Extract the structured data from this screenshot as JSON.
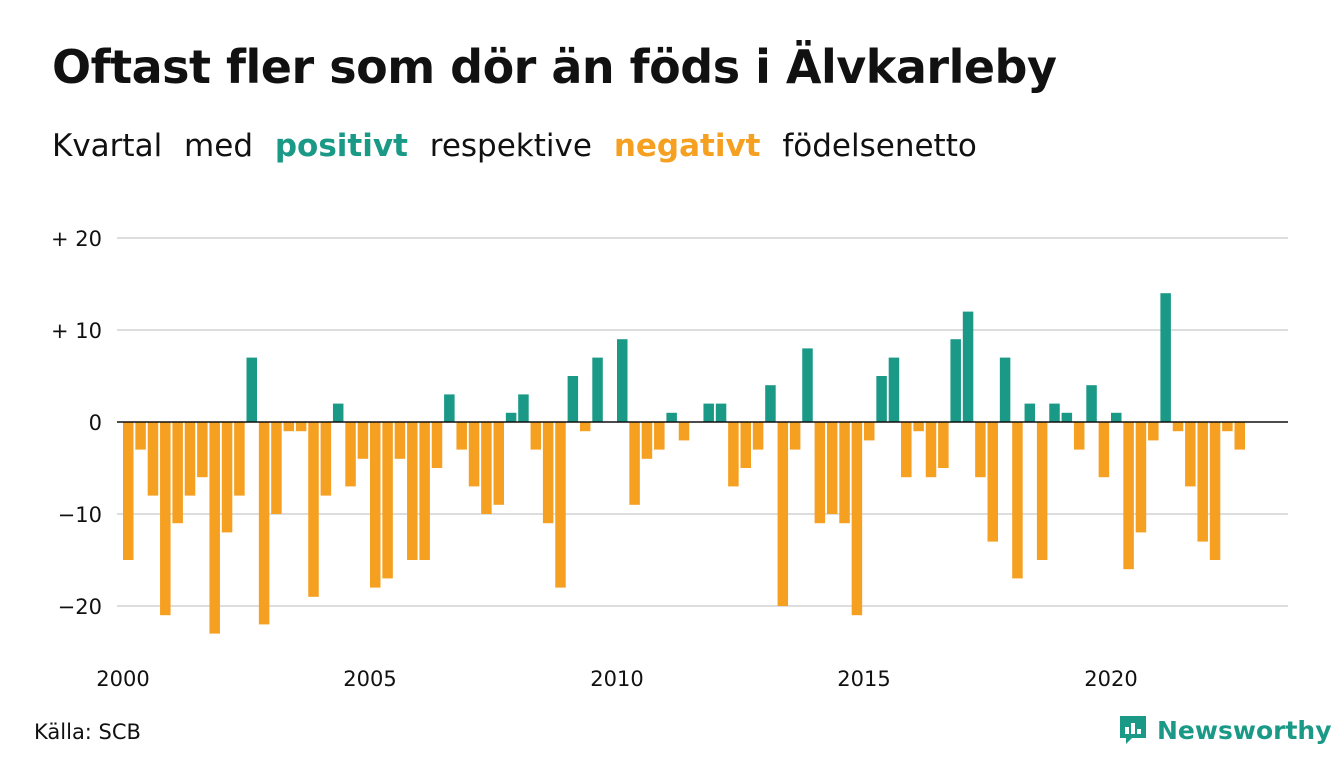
{
  "header": {
    "title": "Oftast fler som dör än föds i Älvkarleby",
    "subtitle_parts": {
      "p1": "Kvartal",
      "p2": "med",
      "positive": "positivt",
      "p3": "respektive",
      "negative": "negativt",
      "p4": "födelsenetto"
    }
  },
  "footer": {
    "source": "Källa: SCB",
    "brand": "Newsworthy",
    "brand_icon": "newsworthy-logo-icon"
  },
  "colors": {
    "positive": "#1b9987",
    "negative": "#f5a020",
    "grid": "#dddddd",
    "text": "#111111"
  },
  "chart_data": {
    "type": "bar",
    "title": "Oftast fler som dör än föds i Älvkarleby",
    "subtitle": "Kvartal med positivt respektive negativt födelsenetto",
    "xlabel": "",
    "ylabel": "",
    "ylim": [
      -25,
      22
    ],
    "y_ticks": [
      {
        "value": 20,
        "label": "+ 20"
      },
      {
        "value": 10,
        "label": "+ 10"
      },
      {
        "value": 0,
        "label": "0"
      },
      {
        "value": -10,
        "label": "−10"
      },
      {
        "value": -20,
        "label": "−20"
      }
    ],
    "x_ticks": [
      {
        "quarter_index": 0,
        "label": "2000"
      },
      {
        "quarter_index": 20,
        "label": "2005"
      },
      {
        "quarter_index": 40,
        "label": "2010"
      },
      {
        "quarter_index": 60,
        "label": "2015"
      },
      {
        "quarter_index": 80,
        "label": "2020"
      }
    ],
    "grid": true,
    "start": "2000 Q1",
    "frequency": "quarter",
    "values": [
      -15,
      -3,
      -8,
      -21,
      -11,
      -8,
      -6,
      -23,
      -12,
      -8,
      7,
      -22,
      -10,
      -1,
      -1,
      -19,
      -8,
      2,
      -7,
      -4,
      -18,
      -17,
      -4,
      -15,
      -15,
      -5,
      3,
      -3,
      -7,
      -10,
      -9,
      1,
      3,
      -3,
      -11,
      -18,
      5,
      -1,
      7,
      0,
      9,
      -9,
      -4,
      -3,
      1,
      -2,
      0,
      2,
      2,
      -7,
      -5,
      -3,
      4,
      -20,
      -3,
      8,
      -11,
      -10,
      -11,
      -21,
      -2,
      5,
      7,
      -6,
      -1,
      -6,
      -5,
      9,
      12,
      -6,
      -13,
      7,
      -17,
      2,
      -15,
      2,
      1,
      -3,
      4,
      -6,
      1,
      -16,
      -12,
      -2,
      14,
      -1,
      -7,
      -13,
      -15,
      -1,
      -3
    ]
  }
}
